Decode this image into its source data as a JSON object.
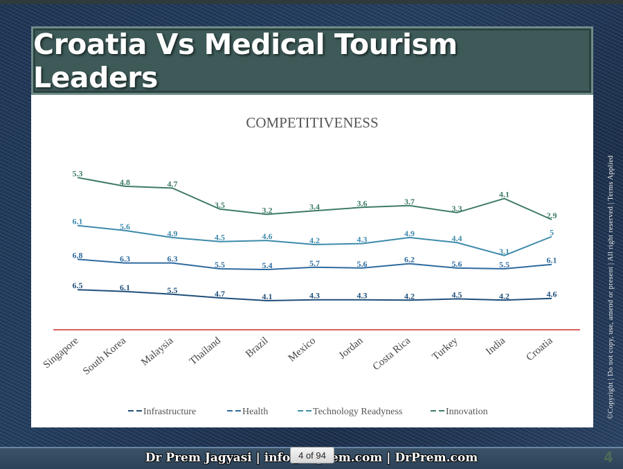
{
  "slide": {
    "title": "Croatia Vs Medical Tourism Leaders",
    "copyright": "©Copyright | Do not copy, use, amend or present | All right reserved | Terms Applied",
    "footer": "Dr Prem Jagyasi  | info@drprem.com | DrPrem.com",
    "page_badge": "4 of 94",
    "page_number": "4"
  },
  "chart_data": {
    "type": "line",
    "title": "COMPETITIVENESS",
    "xlabel": "",
    "ylabel": "",
    "categories": [
      "Singapore",
      "South Korea",
      "Malaysia",
      "Thailand",
      "Brazil",
      "Mexico",
      "Jordan",
      "Costa Rica",
      "Turkey",
      "India",
      "Croatia"
    ],
    "series": [
      {
        "name": "Infrastructure",
        "color": "#1f4e79",
        "values": [
          6.5,
          6.1,
          5.5,
          4.7,
          4.1,
          4.3,
          4.3,
          4.2,
          4.5,
          4.2,
          4.6
        ]
      },
      {
        "name": "Health",
        "color": "#2e6a9e",
        "values": [
          6.8,
          6.3,
          6.3,
          5.5,
          5.4,
          5.7,
          5.6,
          6.2,
          5.6,
          5.5,
          6.1
        ]
      },
      {
        "name": "Technology Readyness",
        "color": "#3d8aaa",
        "values": [
          6.1,
          5.6,
          4.9,
          4.5,
          4.6,
          4.2,
          4.3,
          4.9,
          4.4,
          3.1,
          5
        ]
      },
      {
        "name": "Innovation",
        "color": "#3e7a66",
        "values": [
          5.3,
          4.8,
          4.7,
          3.5,
          3.2,
          3.4,
          3.6,
          3.7,
          3.3,
          4.1,
          2.9
        ]
      }
    ],
    "baseline_color": "#c00000",
    "legend_position": "bottom",
    "grid": false
  }
}
